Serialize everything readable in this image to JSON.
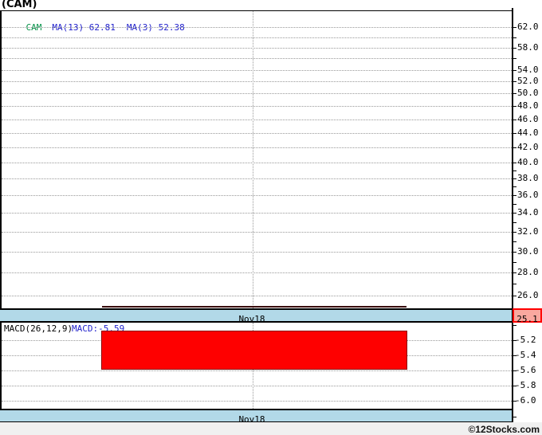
{
  "title": "(CAM)",
  "price_panel": {
    "legend": {
      "symbol": "CAM",
      "ma1": "MA(13) 62.81",
      "ma2": "MA(3) 52.38"
    },
    "last_price_badge": "25.1",
    "colors": {
      "symbol_green": "#009045",
      "indicator_blue": "#2222cc",
      "price_line": "#380404",
      "badge_bg": "#faa89f",
      "badge_border": "#ff0000",
      "band_blue": "#b2d9e8",
      "grid_gray": "#999999"
    }
  },
  "macd_panel": {
    "heading": "MACD(26,12,9)",
    "value_text": "MACD:-5.59",
    "colors": {
      "bar_red": "#fe0000",
      "bar_border": "#8b0000"
    }
  },
  "date_label": "Nov18",
  "footer": {
    "copyright": "©12Stocks.com"
  },
  "chart_data": [
    {
      "type": "line",
      "title": "CAM price panel",
      "scale": "log",
      "x_tick_labels": [
        "Nov18"
      ],
      "y_ticks": [
        62.0,
        58.0,
        54.0,
        52.0,
        50.0,
        48.0,
        46.0,
        44.0,
        42.0,
        40.0,
        38.0,
        36.0,
        34.0,
        32.0,
        30.0,
        28.0,
        26.0
      ],
      "y_minor_ticks": [
        60,
        56,
        39,
        37,
        35,
        33,
        31,
        29,
        27
      ],
      "grid_max": 62,
      "grid_min": 26,
      "grid_step": 2,
      "ylim": [
        25.0,
        63.5
      ],
      "series": [
        {
          "name": "CAM",
          "color": "#380404",
          "values": [
            25.1,
            25.1
          ]
        }
      ],
      "moving_averages": [
        {
          "name": "MA(13)",
          "value": 62.81
        },
        {
          "name": "MA(3)",
          "value": 52.38
        }
      ],
      "last_value": 25.1,
      "legend_position": "top-left"
    },
    {
      "type": "bar",
      "title": "MACD(26,12,9)",
      "x_tick_labels": [
        "Nov18"
      ],
      "y_ticks": [
        -5.2,
        -5.4,
        -5.6,
        -5.8,
        -6.0
      ],
      "y_minor_ticks": [
        -5.0,
        -6.2
      ],
      "ylim": [
        -6.2,
        -5.0
      ],
      "values": [
        -5.59
      ],
      "bar_visible_top": -5.07,
      "bar_color": "#fe0000",
      "grid": true,
      "legend_position": "top-left"
    }
  ]
}
